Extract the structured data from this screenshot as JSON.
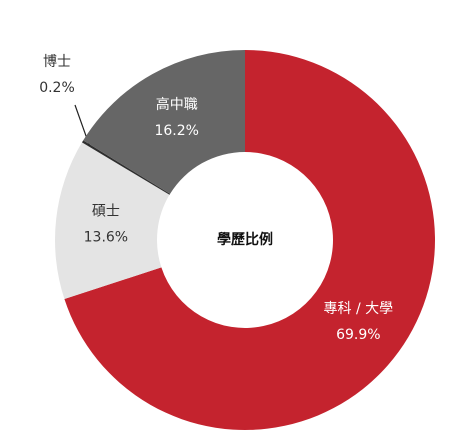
{
  "chart_data": {
    "type": "donut",
    "center_label": "學歷比例",
    "categories": [
      "專科 / 大學",
      "碩士",
      "博士",
      "高中職"
    ],
    "values": [
      69.9,
      13.6,
      0.2,
      16.2
    ],
    "value_labels": [
      "69.9%",
      "13.6%",
      "0.2%",
      "16.2%"
    ],
    "colors": [
      "#c4232e",
      "#e4e4e4",
      "#2f2f2f",
      "#666666"
    ]
  }
}
